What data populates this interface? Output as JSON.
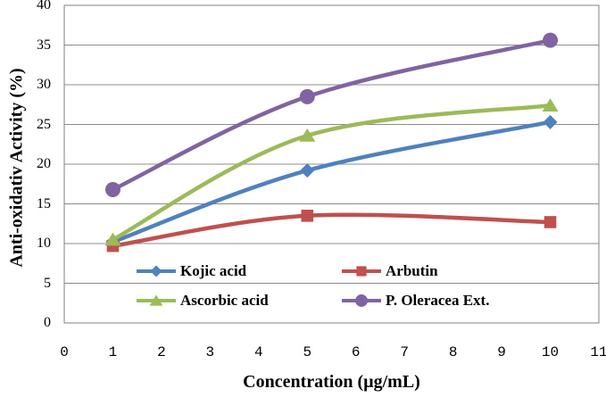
{
  "chart_data": {
    "type": "line",
    "x": [
      1,
      5,
      10
    ],
    "series": [
      {
        "name": "Kojic acid",
        "values": [
          10.2,
          19.2,
          25.3
        ],
        "color": "#4F81BD",
        "marker": "diamond"
      },
      {
        "name": "Arbutin",
        "values": [
          9.7,
          13.5,
          12.7
        ],
        "color": "#C0504D",
        "marker": "square"
      },
      {
        "name": "Ascorbic acid",
        "values": [
          10.5,
          23.6,
          27.4
        ],
        "color": "#9BBB59",
        "marker": "triangle"
      },
      {
        "name": "P. Oleracea Ext.",
        "values": [
          16.8,
          28.5,
          35.6
        ],
        "color": "#8064A2",
        "marker": "circle"
      }
    ],
    "title": "",
    "xlabel": "Concentration (µg/mL)",
    "ylabel": "Anti-oxidativ Activity (%)",
    "xlim": [
      0,
      11
    ],
    "ylim": [
      0,
      40
    ],
    "xticks": [
      0,
      1,
      2,
      3,
      4,
      5,
      6,
      7,
      8,
      9,
      10,
      11
    ],
    "yticks": [
      0,
      5,
      10,
      15,
      20,
      25,
      30,
      35,
      40
    ],
    "grid": "horizontal",
    "smooth": true,
    "legend_position": "inside-bottom",
    "gridline_color": "#8C8C8C",
    "border_color": "#808080",
    "background_color": "#FFFFFF",
    "text_color": "#000000"
  }
}
